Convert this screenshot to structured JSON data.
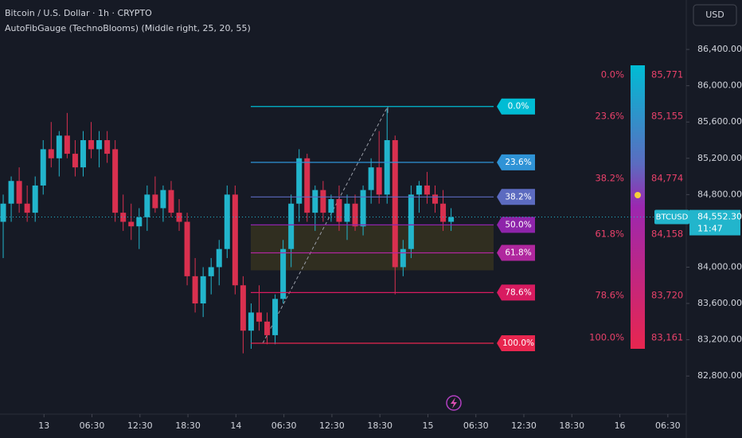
{
  "chart_data": {
    "type": "candlestick",
    "title": "Bitcoin / U.S. Dollar · 1h · CRYPTO",
    "subtitle": "AutoFibGauge (TechnoBlooms)  (Middle right, 25, 20, 55)",
    "currency": "USD",
    "symbol": "BTCUSD",
    "up_color": "#22b5cc",
    "down_color": "#d9304f",
    "ylim": [
      82380,
      86945
    ],
    "yticks": [
      {
        "value": 86400,
        "label": "86,400.00"
      },
      {
        "value": 86000,
        "label": "86,000.00"
      },
      {
        "value": 85600,
        "label": "85,600.00"
      },
      {
        "value": 85200,
        "label": "85,200.00"
      },
      {
        "value": 84800,
        "label": "84,800.00"
      },
      {
        "value": 84000,
        "label": "84,000.00"
      },
      {
        "value": 83600,
        "label": "83,600.00"
      },
      {
        "value": 83200,
        "label": "83,200.00"
      },
      {
        "value": 82800,
        "label": "82,800.00"
      }
    ],
    "xlim": [
      -0.4,
      86.6
    ],
    "xticks": [
      {
        "value": 5.1,
        "label": "13"
      },
      {
        "value": 11.1,
        "label": "06:30"
      },
      {
        "value": 17.1,
        "label": "12:30"
      },
      {
        "value": 23.1,
        "label": "18:30"
      },
      {
        "value": 29.1,
        "label": "14"
      },
      {
        "value": 35.1,
        "label": "06:30"
      },
      {
        "value": 41.1,
        "label": "12:30"
      },
      {
        "value": 47.1,
        "label": "18:30"
      },
      {
        "value": 53.1,
        "label": "15"
      },
      {
        "value": 59.1,
        "label": "06:30"
      },
      {
        "value": 65.1,
        "label": "12:30"
      },
      {
        "value": 71.1,
        "label": "18:30"
      },
      {
        "value": 77.1,
        "label": "16"
      },
      {
        "value": 83.1,
        "label": "06:30"
      }
    ],
    "candles": [
      [
        84500,
        84800,
        84100,
        84700
      ],
      [
        84700,
        85000,
        84500,
        84950
      ],
      [
        84950,
        85100,
        84600,
        84700
      ],
      [
        84700,
        84900,
        84500,
        84600
      ],
      [
        84600,
        85000,
        84500,
        84900
      ],
      [
        84900,
        85400,
        84800,
        85300
      ],
      [
        85300,
        85600,
        85100,
        85200
      ],
      [
        85200,
        85500,
        85000,
        85450
      ],
      [
        85450,
        85700,
        85200,
        85250
      ],
      [
        85250,
        85400,
        85000,
        85100
      ],
      [
        85100,
        85500,
        85000,
        85400
      ],
      [
        85400,
        85600,
        85200,
        85300
      ],
      [
        85300,
        85500,
        85100,
        85400
      ],
      [
        85400,
        85500,
        85150,
        85250
      ],
      [
        85300,
        85400,
        84500,
        84600
      ],
      [
        84600,
        84800,
        84400,
        84500
      ],
      [
        84500,
        84700,
        84300,
        84450
      ],
      [
        84450,
        84650,
        84200,
        84550
      ],
      [
        84550,
        84900,
        84400,
        84800
      ],
      [
        84800,
        85000,
        84600,
        84650
      ],
      [
        84650,
        84900,
        84500,
        84850
      ],
      [
        84850,
        84950,
        84550,
        84600
      ],
      [
        84600,
        84750,
        84400,
        84500
      ],
      [
        84500,
        84600,
        83800,
        83900
      ],
      [
        83900,
        84100,
        83500,
        83600
      ],
      [
        83600,
        84000,
        83450,
        83900
      ],
      [
        83900,
        84100,
        83700,
        84000
      ],
      [
        84000,
        84300,
        83800,
        84200
      ],
      [
        84200,
        84900,
        84100,
        84800
      ],
      [
        84800,
        84900,
        83700,
        83800
      ],
      [
        83800,
        83900,
        83050,
        83300
      ],
      [
        83300,
        83600,
        83100,
        83500
      ],
      [
        83500,
        83800,
        83300,
        83400
      ],
      [
        83400,
        83500,
        83150,
        83250
      ],
      [
        83250,
        83700,
        83150,
        83650
      ],
      [
        83650,
        84300,
        83600,
        84200
      ],
      [
        84200,
        84800,
        84000,
        84700
      ],
      [
        84700,
        85300,
        84500,
        85200
      ],
      [
        85200,
        85250,
        84500,
        84600
      ],
      [
        84600,
        84900,
        84400,
        84850
      ],
      [
        84850,
        84950,
        84500,
        84600
      ],
      [
        84600,
        84800,
        84500,
        84750
      ],
      [
        84750,
        84900,
        84400,
        84500
      ],
      [
        84500,
        84800,
        84300,
        84700
      ],
      [
        84700,
        84800,
        84400,
        84450
      ],
      [
        84450,
        84900,
        84350,
        84850
      ],
      [
        84850,
        85200,
        84700,
        85100
      ],
      [
        85100,
        85500,
        84700,
        84800
      ],
      [
        84800,
        85750,
        84700,
        85400
      ],
      [
        85400,
        85450,
        83700,
        84000
      ],
      [
        84000,
        84300,
        83900,
        84200
      ],
      [
        84200,
        84900,
        84100,
        84800
      ],
      [
        84800,
        84950,
        84600,
        84900
      ],
      [
        84900,
        85050,
        84700,
        84800
      ],
      [
        84800,
        84900,
        84600,
        84700
      ],
      [
        84700,
        84850,
        84400,
        84500
      ],
      [
        84500,
        84650,
        84400,
        84552.3
      ]
    ],
    "last_price": 84552.3,
    "last_price_label": "84,552.30",
    "countdown": "11:47",
    "fib_levels": [
      {
        "level": "0.0%",
        "price": 85771,
        "price_label": "85,771",
        "color": "#00bcd4"
      },
      {
        "level": "23.6%",
        "price": 85155,
        "price_label": "85,155",
        "color": "#2f93d6"
      },
      {
        "level": "38.2%",
        "price": 84774,
        "price_label": "84,774",
        "color": "#5c6bc0"
      },
      {
        "level": "50.0%",
        "price": 84466,
        "color": "#8e24aa"
      },
      {
        "level": "61.8%",
        "price": 84158,
        "price_label": "84,158",
        "color": "#b0279e"
      },
      {
        "level": "78.6%",
        "price": 83720,
        "price_label": "83,720",
        "color": "#d81b60"
      },
      {
        "level": "100.0%",
        "price": 83161,
        "price_label": "83,161",
        "color": "#e8264f"
      }
    ]
  }
}
